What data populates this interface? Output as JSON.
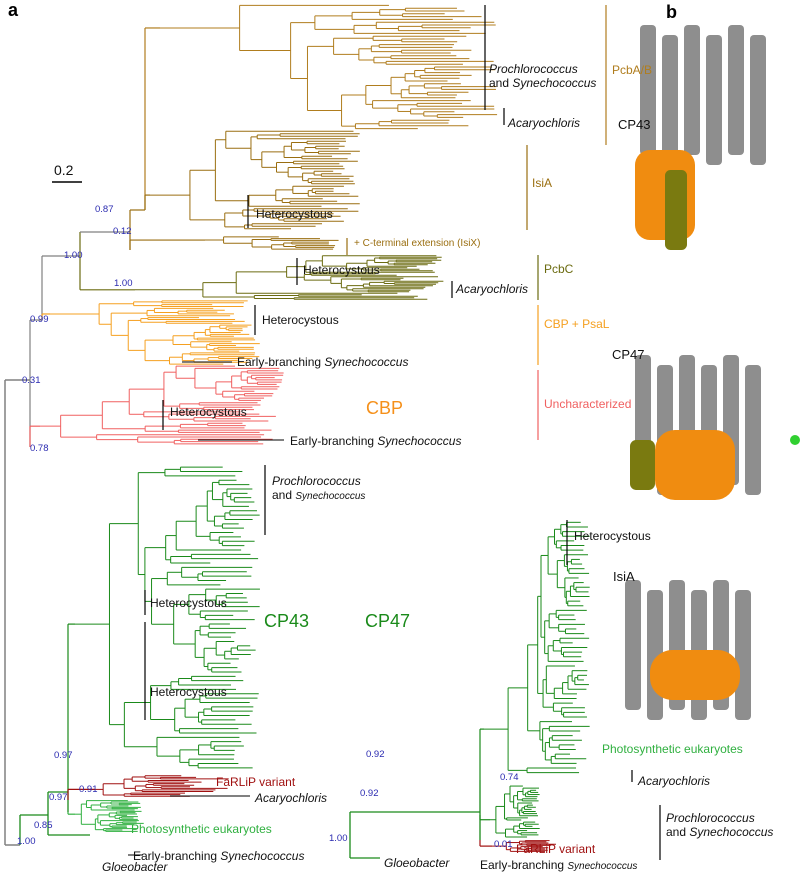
{
  "panels": {
    "a": "a",
    "b": "b"
  },
  "scale_bar": "0.2",
  "colors": {
    "pcbab": "#b07d1e",
    "isia": "#9a6e10",
    "pcbc": "#6b6b10",
    "cbp_psal": "#f5a020",
    "uncharacterized": "#f06060",
    "cp43": "#1a8a1a",
    "eukaryotes": "#30b040",
    "farlip": "#a01010",
    "backbone": "#808080",
    "support": "#2a2ab0"
  },
  "groups": {
    "cbp": "CBP",
    "cp43": "CP43",
    "cp47": "CP47"
  },
  "clade_labels": {
    "pcbab": "PcbA/B",
    "isia": "IsiA",
    "isix": "+ C-terminal extension (IsiX)",
    "pcbc": "PcbC",
    "cbp_psal": "CBP + PsaL",
    "uncharacterized": "Uncharacterized"
  },
  "taxa": {
    "prochlorococcus": "Prochlorococcus",
    "and_synechococcus": "and Synechococcus",
    "and": "and",
    "synechococcus": "Synechococcus",
    "acaryochloris": "Acaryochloris",
    "heterocystous": "Heterocystous",
    "early_branching": "Early-branching",
    "photosynthetic_eukaryotes": "Photosynthetic eukaryotes",
    "farlip_variant": "FaRLiP variant",
    "gloeobacter": "Gloeobacter"
  },
  "support_values": [
    "0.87",
    "0.12",
    "1.00",
    "1.00",
    "0.99",
    "0.31",
    "0.78",
    "0.97",
    "0.91",
    "0.97",
    "0.85",
    "1.00",
    "0.92",
    "0.74",
    "0.92",
    "1.00",
    "0.01"
  ],
  "structures": {
    "cp43": "CP43",
    "cp47": "CP47",
    "isia": "IsiA"
  }
}
